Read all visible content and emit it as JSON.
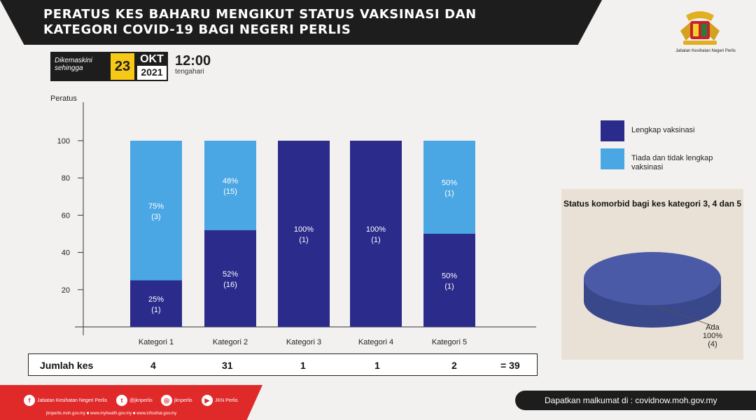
{
  "header": {
    "title_line1": "PERATUS KES BAHARU MENGIKUT STATUS VAKSINASI  DAN",
    "title_line2": "KATEGORI COVID-19 BAGI NEGERI PERLIS"
  },
  "logo": {
    "icon": "crest-icon",
    "caption": "Jabatan Kesihatan Negeri Perlis"
  },
  "updated": {
    "label_line1": "Dikemaskini",
    "label_line2": "sehingga",
    "day": "23",
    "month": "OKT",
    "year": "2021",
    "time": "12:00",
    "time_note": "tengahari"
  },
  "colors": {
    "vaccinated": "#2b2b8c",
    "not_vaccinated": "#4aa7e3",
    "pie_top": "#4b5aa6",
    "pie_side": "#39478b"
  },
  "chart_data": [
    {
      "type": "bar",
      "stacked": true,
      "ylabel": "Peratus",
      "ylim": [
        0,
        100
      ],
      "yticks": [
        20,
        40,
        60,
        80,
        100
      ],
      "categories": [
        "Kategori 1",
        "Kategori 2",
        "Kategori 3",
        "Kategori 4",
        "Kategori 5"
      ],
      "series": [
        {
          "name": "Lengkap vaksinasi",
          "values": [
            25,
            52,
            100,
            100,
            50
          ],
          "labels": [
            "25%",
            "52%",
            "100%",
            "100%",
            "50%"
          ],
          "counts": [
            "(1)",
            "(16)",
            "(1)",
            "(1)",
            "(1)"
          ]
        },
        {
          "name": "Tiada dan tidak lengkap vaksinasi",
          "values": [
            75,
            48,
            0,
            0,
            50
          ],
          "labels": [
            "75%",
            "48%",
            "",
            "",
            "50%"
          ],
          "counts": [
            "(3)",
            "(15)",
            "",
            "",
            "(1)"
          ]
        }
      ],
      "legend": "right"
    },
    {
      "type": "pie",
      "title": "Status komorbid bagi kes kategori 3, 4 dan 5",
      "slices": [
        {
          "label": "Ada",
          "value": 100,
          "percent": "100%",
          "count": "(4)"
        }
      ]
    }
  ],
  "totals": {
    "label": "Jumlah kes",
    "values": [
      "4",
      "31",
      "1",
      "1",
      "2"
    ],
    "grand_total": "= 39"
  },
  "footer": {
    "social": [
      {
        "icon": "facebook-icon",
        "text": "Jabatan Kesihatan Negeri Perlis"
      },
      {
        "icon": "twitter-icon",
        "text": "@jknperlis"
      },
      {
        "icon": "instagram-icon",
        "text": "jknperlis"
      },
      {
        "icon": "youtube-icon",
        "text": "JKN Perlis"
      }
    ],
    "sites": "jknperlis.moh.gov.my ■ www.myhealth.gov.my ■ www.infosihat.gov.my",
    "info": "Dapatkan malkumat di : covidnow.moh.gov.my"
  }
}
